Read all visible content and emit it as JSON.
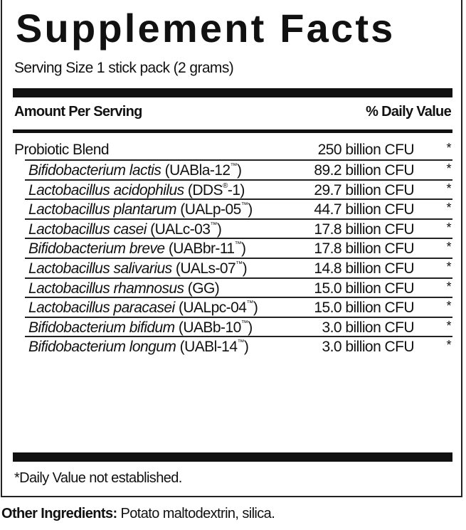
{
  "title": "Supplement Facts",
  "serving_size": "Serving Size 1 stick pack (2 grams)",
  "header": {
    "amount": "Amount Per Serving",
    "daily_value": "% Daily Value"
  },
  "blend": {
    "name": "Probiotic Blend",
    "amount": "250 billion CFU",
    "dv": "*"
  },
  "ingredients": [
    {
      "species": "Bifidobacterium lactis",
      "strain": "(UABla-12",
      "mark": "™",
      "strain_end": ")",
      "amount": "89.2 billion CFU",
      "dv": "*"
    },
    {
      "species": "Lactobacillus acidophilus",
      "strain": "(DDS",
      "mark": "®",
      "strain_end": "-1)",
      "amount": "29.7 billion CFU",
      "dv": "*"
    },
    {
      "species": "Lactobacillus plantarum",
      "strain": "(UALp-05",
      "mark": "™",
      "strain_end": ")",
      "amount": "44.7 billion CFU",
      "dv": "*"
    },
    {
      "species": "Lactobacillus casei",
      "strain": "(UALc-03",
      "mark": "™",
      "strain_end": ")",
      "amount": "17.8 billion CFU",
      "dv": "*"
    },
    {
      "species": "Bifidobacterium breve",
      "strain": "(UABbr-11",
      "mark": "™",
      "strain_end": ")",
      "amount": "17.8 billion CFU",
      "dv": "*"
    },
    {
      "species": "Lactobacillus salivarius",
      "strain": "(UALs-07",
      "mark": "™",
      "strain_end": ")",
      "amount": "14.8 billion CFU",
      "dv": "*"
    },
    {
      "species": "Lactobacillus rhamnosus",
      "strain": "(GG)",
      "mark": "",
      "strain_end": "",
      "amount": "15.0 billion CFU",
      "dv": "*"
    },
    {
      "species": "Lactobacillus paracasei",
      "strain": "(UALpc-04",
      "mark": "™",
      "strain_end": ")",
      "amount": "15.0 billion CFU",
      "dv": "*"
    },
    {
      "species": "Bifidobacterium bifidum",
      "strain": "(UABb-10",
      "mark": "™",
      "strain_end": ")",
      "amount": "3.0 billion CFU",
      "dv": "*"
    },
    {
      "species": "Bifidobacterium longum",
      "strain": "(UABl-14",
      "mark": "™",
      "strain_end": ")",
      "amount": "3.0 billion CFU",
      "dv": "*"
    }
  ],
  "footnote": "*Daily Value not established.",
  "other_ingredients": {
    "label": "Other Ingredients:",
    "value": " Potato maltodextrin, silica."
  }
}
